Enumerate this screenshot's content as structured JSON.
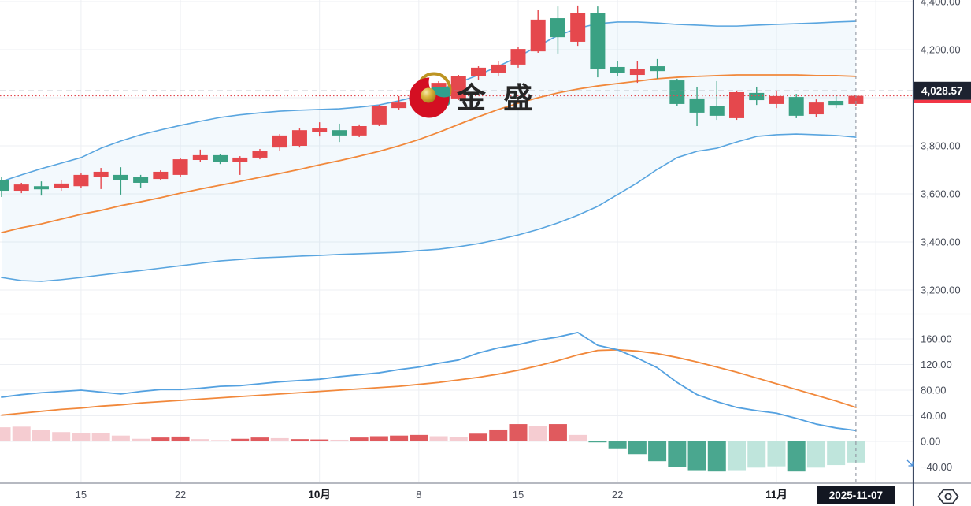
{
  "watermark": {
    "text": "金 盛"
  },
  "colors": {
    "up_candle": "#e5484d",
    "down_candle": "#3aa183",
    "hist_pos_dark": "#e05a5e",
    "hist_pos_light": "#f5ccd1",
    "hist_neg_dark": "#4aa78f",
    "hist_neg_light": "#bfe5dc",
    "band_blue": "#59a5df",
    "band_orange": "#f1883b",
    "macd_blue": "#54a1e0",
    "signal_orange": "#f1883b",
    "grid": "#edeff3",
    "axis_text": "#474c58",
    "axis_border": "#3d4961",
    "last_price_line": "#9096a1",
    "prev_close_line": "#e14a52",
    "badge_bg": "#1d2230",
    "date_badge_bg": "#131722",
    "badge_strip": "#f23645",
    "separator": "#b6b9c1",
    "panel_separator": "#e2e5eb",
    "logo_red": "#d40f22",
    "logo_gold": "#bd9422",
    "logo_teal": "#31a08e",
    "watermark_text_color": "#262626"
  },
  "chart_data": {
    "type": "candlestick+macd",
    "title": "",
    "legend_position": "none",
    "grid": true,
    "dates": [
      "09-09",
      "09-10",
      "09-11",
      "09-12",
      "09-15",
      "09-16",
      "09-17",
      "09-18",
      "09-19",
      "09-22",
      "09-23",
      "09-24",
      "09-25",
      "09-26",
      "09-29",
      "09-30",
      "10-01",
      "10-02",
      "10-03",
      "10-06",
      "10-07",
      "10-08",
      "10-09",
      "10-10",
      "10-13",
      "10-14",
      "10-15",
      "10-16",
      "10-17",
      "10-20",
      "10-21",
      "10-22",
      "10-23",
      "10-24",
      "10-27",
      "10-28",
      "10-29",
      "10-30",
      "10-31",
      "11-03",
      "11-04",
      "11-05",
      "11-06",
      "11-07"
    ],
    "candles_ohlc": [
      [
        3659,
        3669,
        3587,
        3613
      ],
      [
        3613,
        3646,
        3603,
        3639
      ],
      [
        3632,
        3652,
        3593,
        3619
      ],
      [
        3623,
        3656,
        3613,
        3643
      ],
      [
        3632,
        3685,
        3626,
        3679
      ],
      [
        3669,
        3708,
        3620,
        3692
      ],
      [
        3679,
        3711,
        3597,
        3659
      ],
      [
        3669,
        3679,
        3626,
        3646
      ],
      [
        3662,
        3698,
        3656,
        3692
      ],
      [
        3679,
        3750,
        3672,
        3744
      ],
      [
        3741,
        3784,
        3734,
        3761
      ],
      [
        3761,
        3767,
        3724,
        3734
      ],
      [
        3734,
        3757,
        3679,
        3751
      ],
      [
        3751,
        3787,
        3744,
        3777
      ],
      [
        3793,
        3849,
        3780,
        3843
      ],
      [
        3800,
        3872,
        3793,
        3865
      ],
      [
        3856,
        3898,
        3839,
        3872
      ],
      [
        3865,
        3892,
        3816,
        3843
      ],
      [
        3843,
        3889,
        3836,
        3882
      ],
      [
        3889,
        3970,
        3882,
        3964
      ],
      [
        3957,
        4007,
        3951,
        3980
      ],
      [
        3987,
        4036,
        3980,
        4030
      ],
      [
        4007,
        4069,
        4000,
        4062
      ],
      [
        3997,
        4095,
        3990,
        4089
      ],
      [
        4089,
        4131,
        4075,
        4125
      ],
      [
        4105,
        4154,
        4089,
        4138
      ],
      [
        4138,
        4213,
        4125,
        4203
      ],
      [
        4193,
        4364,
        4187,
        4325
      ],
      [
        4331,
        4380,
        4184,
        4252
      ],
      [
        4233,
        4384,
        4216,
        4351
      ],
      [
        4351,
        4380,
        4085,
        4118
      ],
      [
        4128,
        4154,
        4089,
        4102
      ],
      [
        4095,
        4151,
        4062,
        4121
      ],
      [
        4131,
        4161,
        4079,
        4111
      ],
      [
        4072,
        4079,
        3964,
        3974
      ],
      [
        3997,
        4046,
        3882,
        3938
      ],
      [
        3964,
        4069,
        3908,
        3925
      ],
      [
        3915,
        4030,
        3908,
        4023
      ],
      [
        4020,
        4046,
        3970,
        3990
      ],
      [
        3974,
        4030,
        3957,
        4007
      ],
      [
        4003,
        4016,
        3915,
        3925
      ],
      [
        3931,
        3993,
        3921,
        3980
      ],
      [
        3987,
        4013,
        3957,
        3970
      ],
      [
        3974,
        4013,
        3967,
        4008
      ]
    ],
    "bollinger": {
      "upper": [
        3652,
        3679,
        3705,
        3728,
        3751,
        3790,
        3820,
        3846,
        3866,
        3885,
        3902,
        3918,
        3929,
        3937,
        3944,
        3948,
        3951,
        3954,
        3961,
        3970,
        3987,
        4007,
        4033,
        4062,
        4095,
        4131,
        4170,
        4216,
        4259,
        4289,
        4308,
        4315,
        4315,
        4311,
        4305,
        4302,
        4298,
        4298,
        4302,
        4305,
        4308,
        4311,
        4315,
        4318
      ],
      "middle": [
        3439,
        3459,
        3475,
        3495,
        3515,
        3531,
        3551,
        3567,
        3584,
        3603,
        3620,
        3636,
        3652,
        3669,
        3685,
        3702,
        3721,
        3738,
        3757,
        3777,
        3800,
        3826,
        3856,
        3889,
        3921,
        3951,
        3977,
        4000,
        4020,
        4036,
        4049,
        4059,
        4069,
        4079,
        4085,
        4089,
        4092,
        4095,
        4095,
        4095,
        4095,
        4092,
        4092,
        4089
      ],
      "lower": [
        3252,
        3239,
        3236,
        3243,
        3252,
        3262,
        3272,
        3281,
        3291,
        3301,
        3311,
        3321,
        3327,
        3334,
        3337,
        3341,
        3344,
        3348,
        3351,
        3354,
        3357,
        3364,
        3370,
        3380,
        3393,
        3410,
        3429,
        3452,
        3479,
        3511,
        3548,
        3597,
        3646,
        3702,
        3751,
        3777,
        3790,
        3816,
        3839,
        3846,
        3849,
        3846,
        3843,
        3836
      ]
    },
    "macd": {
      "macd_line": [
        69,
        73,
        76,
        78,
        80,
        77,
        74,
        78,
        81,
        81,
        83,
        86,
        87,
        90,
        93,
        95,
        97,
        101,
        104,
        107,
        112,
        116,
        122,
        127,
        138,
        146,
        151,
        158,
        163,
        170,
        150,
        143,
        130,
        115,
        92,
        73,
        62,
        53,
        48,
        44,
        36,
        27,
        21,
        17
      ],
      "signal_line": [
        41,
        44,
        47,
        50,
        52,
        55,
        57,
        60,
        62,
        64,
        66,
        68,
        70,
        72,
        74,
        76,
        78,
        80,
        82,
        84,
        86,
        89,
        92,
        96,
        100,
        105,
        111,
        118,
        126,
        135,
        142,
        143,
        141,
        137,
        131,
        124,
        116,
        108,
        99,
        90,
        81,
        72,
        63,
        53
      ],
      "histogram": [
        22,
        23,
        17.5,
        14.5,
        13.5,
        13.5,
        9,
        4,
        6,
        7.5,
        3.5,
        2,
        4,
        6,
        5,
        3.5,
        3,
        2.5,
        6,
        8,
        9,
        10,
        8,
        7,
        12,
        18.5,
        27,
        24.5,
        27,
        10,
        -1.5,
        -12,
        -20,
        -31,
        -40,
        -45,
        -47,
        -45,
        -41,
        -39,
        -47,
        -41,
        -37,
        -33
      ],
      "histogram_tone": [
        "L",
        "L",
        "L",
        "L",
        "L",
        "L",
        "L",
        "L",
        "D",
        "D",
        "L",
        "L",
        "D",
        "D",
        "L",
        "D",
        "D",
        "L",
        "D",
        "D",
        "D",
        "D",
        "L",
        "L",
        "D",
        "D",
        "D",
        "L",
        "D",
        "L",
        "D",
        "D",
        "D",
        "D",
        "D",
        "D",
        "D",
        "L",
        "L",
        "L",
        "D",
        "L",
        "L",
        "L"
      ]
    },
    "price_axis": {
      "ticks": [
        {
          "label": "4,400.00",
          "price": 4400
        },
        {
          "label": "4,200.00",
          "price": 4200
        },
        {
          "label": "3,800.00",
          "price": 3800
        },
        {
          "label": "3,600.00",
          "price": 3600
        },
        {
          "label": "3,400.00",
          "price": 3400
        },
        {
          "label": "3,200.00",
          "price": 3200
        }
      ],
      "grid_prices": [
        4400,
        4200,
        4000,
        3800,
        3600,
        3400,
        3200
      ],
      "ylim": [
        3118,
        4406.6
      ],
      "last_price": 4028.57,
      "last_price_label": "4,028.57",
      "prev_close": 4008
    },
    "macd_axis": {
      "ticks": [
        {
          "label": "160.00",
          "value": 160
        },
        {
          "label": "120.00",
          "value": 120
        },
        {
          "label": "80.00",
          "value": 80
        },
        {
          "label": "40.00",
          "value": 40
        },
        {
          "label": "0.00",
          "value": 0
        },
        {
          "label": "−40.00",
          "value": -40
        }
      ],
      "ylim": [
        -64,
        204.3
      ]
    },
    "time_axis": {
      "ticks": [
        {
          "label": "15",
          "bar": 4,
          "bold": false
        },
        {
          "label": "22",
          "bar": 9,
          "bold": false
        },
        {
          "label": "10月",
          "bar": 16,
          "bold": true
        },
        {
          "label": "8",
          "bar": 21,
          "bold": false
        },
        {
          "label": "15",
          "bar": 26,
          "bold": false
        },
        {
          "label": "22",
          "bar": 31,
          "bold": false
        },
        {
          "label": "11月",
          "bar": 39,
          "bold": true
        },
        {
          "label": "",
          "bar": 44,
          "bold": false
        }
      ],
      "current_bar": 43,
      "current_date_label": "2025-11-07"
    }
  }
}
